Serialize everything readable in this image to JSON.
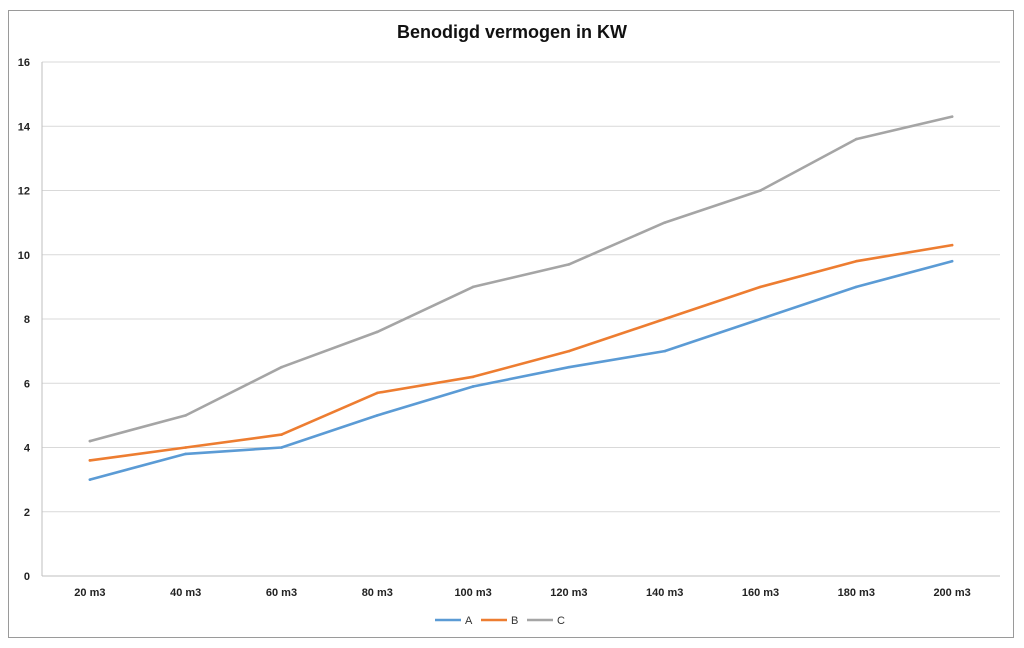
{
  "chart_data": {
    "type": "line",
    "title": "Benodigd vermogen in KW",
    "xlabel": "",
    "ylabel": "",
    "categories": [
      "20 m3",
      "40 m3",
      "60 m3",
      "80 m3",
      "100 m3",
      "120 m3",
      "140 m3",
      "160 m3",
      "180 m3",
      "200 m3"
    ],
    "ylim": [
      0,
      16
    ],
    "yticks": [
      0,
      2,
      4,
      6,
      8,
      10,
      12,
      14,
      16
    ],
    "grid": true,
    "legend_position": "bottom",
    "series": [
      {
        "name": "A",
        "color": "#5b9bd5",
        "values": [
          3.0,
          3.8,
          4.0,
          5.0,
          5.9,
          6.5,
          7.0,
          8.0,
          9.0,
          9.8
        ]
      },
      {
        "name": "B",
        "color": "#ed7d31",
        "values": [
          3.6,
          4.0,
          4.4,
          5.7,
          6.2,
          7.0,
          8.0,
          9.0,
          9.8,
          10.3
        ]
      },
      {
        "name": "C",
        "color": "#a5a5a5",
        "values": [
          4.2,
          5.0,
          6.5,
          7.6,
          9.0,
          9.7,
          11.0,
          12.0,
          13.6,
          14.3
        ]
      }
    ]
  }
}
